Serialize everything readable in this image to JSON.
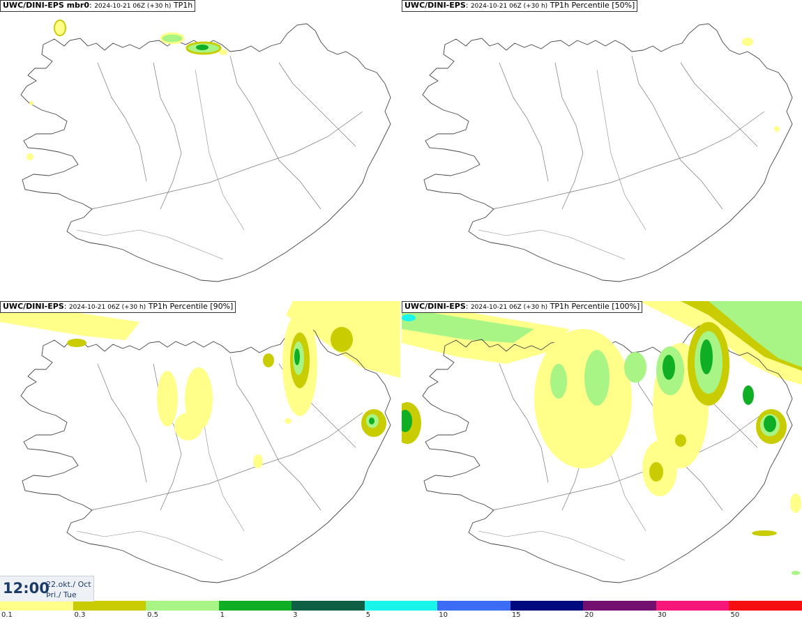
{
  "panels": [
    {
      "model": "UWC/DINI-EPS mbr0",
      "meta": "2024-10-21 06Z (+30 h)",
      "field": "TP1h"
    },
    {
      "model": "UWC/DINI-EPS",
      "meta": "2024-10-21 06Z (+30 h)",
      "field": "TP1h Percentile [50%]"
    },
    {
      "model": "UWC/DINI-EPS",
      "meta": "2024-10-21 06Z (+30 h)",
      "field": "TP1h Percentile [90%]"
    },
    {
      "model": "UWC/DINI-EPS",
      "meta": "2024-10-21 06Z (+30 h)",
      "field": "TP1h Percentile [100%]"
    }
  ],
  "valid_time": {
    "clock": "12:00",
    "date_line1": "22.okt./ Oct",
    "date_line2": "Þri./ Tue"
  },
  "colorbar": {
    "labels": [
      "0.1",
      "0.3",
      "0.5",
      "1",
      "3",
      "5",
      "10",
      "15",
      "20",
      "30",
      "50"
    ],
    "colors": [
      "#ffff8a",
      "#c9cc00",
      "#a8f586",
      "#0fae24",
      "#0e5f43",
      "#19f5ea",
      "#3c6cf3",
      "#000a7e",
      "#730f6e",
      "#f5187a",
      "#f50f10"
    ]
  }
}
